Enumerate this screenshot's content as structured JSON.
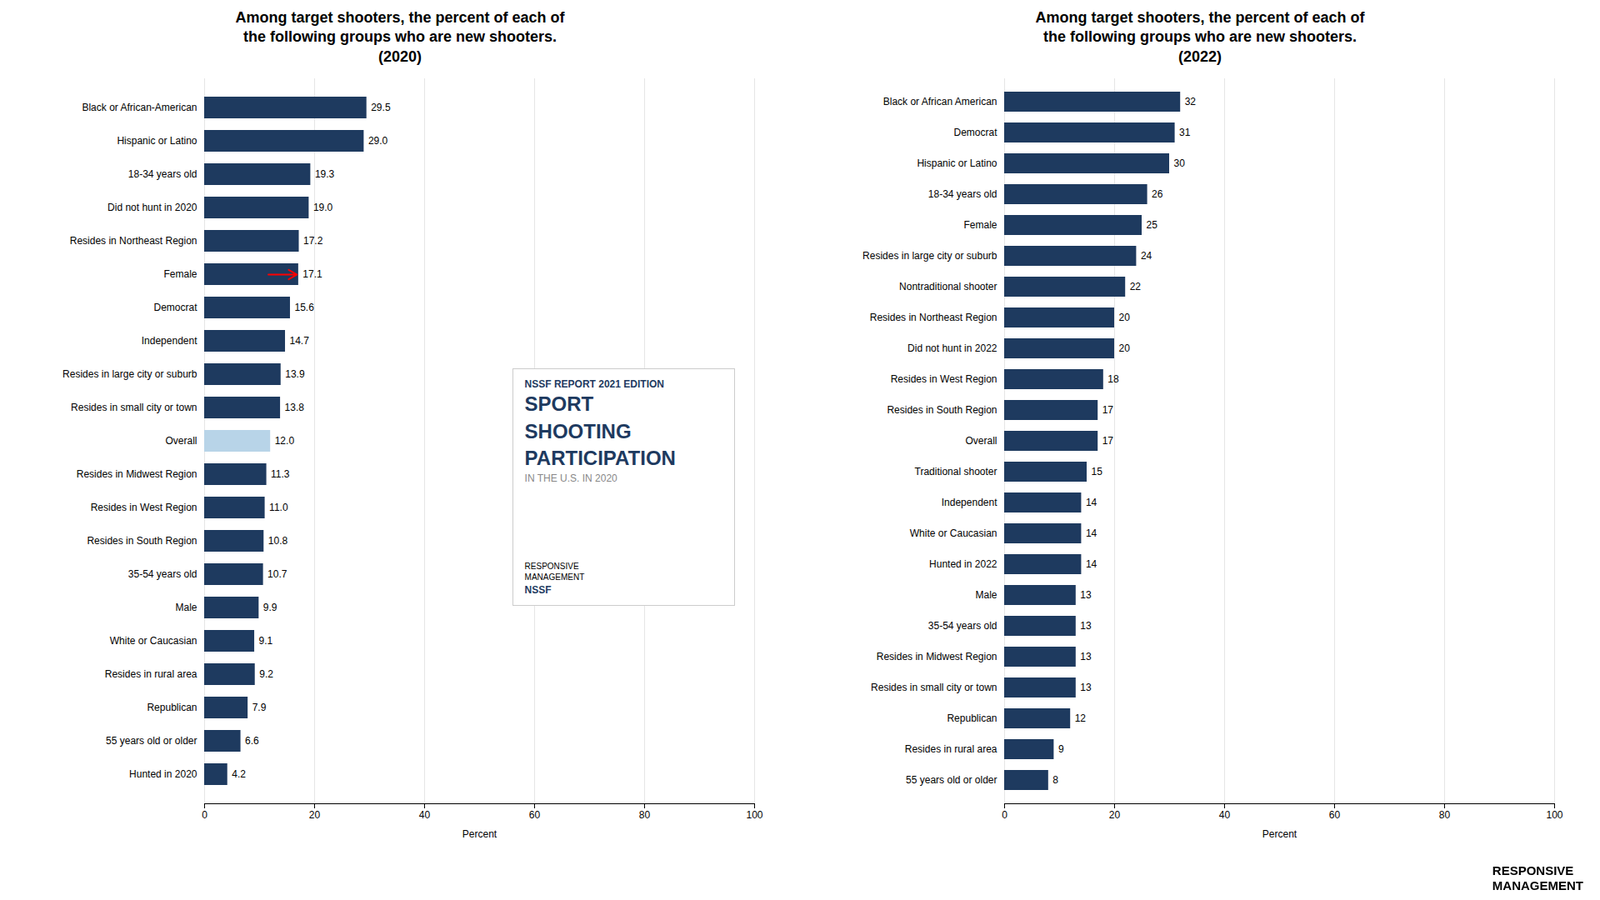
{
  "chart_data": [
    {
      "type": "bar",
      "orientation": "horizontal",
      "title": "Among target shooters, the percent of each of\nthe following groups who are new shooters.\n(2020)",
      "categories": [
        "Black or African-American",
        "Hispanic or Latino",
        "18-34 years old",
        "Did not hunt in 2020",
        "Resides in Northeast Region",
        "Female",
        "Democrat",
        "Independent",
        "Resides in large city or suburb",
        "Resides in small city or town",
        "Overall",
        "Resides in Midwest Region",
        "Resides in West Region",
        "Resides in South Region",
        "35-54 years old",
        "Male",
        "White or Caucasian",
        "Resides in rural area",
        "Republican",
        "55 years old or older",
        "Hunted in 2020"
      ],
      "values": [
        29.5,
        29.0,
        19.3,
        19.0,
        17.2,
        17.1,
        15.6,
        14.7,
        13.9,
        13.8,
        12.0,
        11.3,
        11.0,
        10.8,
        10.7,
        9.9,
        9.1,
        9.2,
        7.9,
        6.6,
        4.2
      ],
      "value_labels": [
        "29.5",
        "29.0",
        "19.3",
        "19.0",
        "17.2",
        "17.1",
        "15.6",
        "14.7",
        "13.9",
        "13.8",
        "12.0",
        "11.3",
        "11.0",
        "10.8",
        "10.7",
        "9.9",
        "9.1",
        "9.2",
        "7.9",
        "6.6",
        "4.2"
      ],
      "colors": [
        "#1e3a5f",
        "#1e3a5f",
        "#1e3a5f",
        "#1e3a5f",
        "#1e3a5f",
        "#1e3a5f",
        "#1e3a5f",
        "#1e3a5f",
        "#1e3a5f",
        "#1e3a5f",
        "#b8d4e8",
        "#1e3a5f",
        "#1e3a5f",
        "#1e3a5f",
        "#1e3a5f",
        "#1e3a5f",
        "#1e3a5f",
        "#1e3a5f",
        "#1e3a5f",
        "#1e3a5f",
        "#1e3a5f"
      ],
      "xlabel": "Percent",
      "xlim": [
        0,
        100
      ],
      "xticks": [
        0,
        20,
        40,
        60,
        80,
        100
      ],
      "grid": true,
      "data_labels": true,
      "annotations": [
        {
          "type": "arrow",
          "category": "Female",
          "color": "red"
        },
        {
          "type": "cover",
          "lines": [
            "NSSF REPORT 2021 EDITION",
            "SPORT",
            "SHOOTING",
            "PARTICIPATION",
            "IN THE U.S. IN 2020",
            "RESPONSIVE",
            "MANAGEMENT",
            "NSSF"
          ]
        }
      ]
    },
    {
      "type": "bar",
      "orientation": "horizontal",
      "title": "Among target shooters, the percent of each of\nthe following groups who are new shooters.\n(2022)",
      "categories": [
        "Black or African American",
        "Democrat",
        "Hispanic or Latino",
        "18-34 years old",
        "Female",
        "Resides in large city or suburb",
        "Nontraditional shooter",
        "Resides in Northeast Region",
        "Did not hunt in 2022",
        "Resides in West Region",
        "Resides in South Region",
        "Overall",
        "Traditional shooter",
        "Independent",
        "White or Caucasian",
        "Hunted in 2022",
        "Male",
        "35-54 years old",
        "Resides in Midwest Region",
        "Resides in small city or town",
        "Republican",
        "Resides in rural area",
        "55 years old or older"
      ],
      "values": [
        32,
        31,
        30,
        26,
        25,
        24,
        22,
        20,
        20,
        18,
        17,
        17,
        15,
        14,
        14,
        14,
        13,
        13,
        13,
        13,
        12,
        9,
        8
      ],
      "color": "#1e3a5f",
      "xlabel": "Percent",
      "xlim": [
        0,
        100
      ],
      "xticks": [
        0,
        20,
        40,
        60,
        80,
        100
      ],
      "grid": true,
      "data_labels": true,
      "annotations": [
        {
          "type": "logo",
          "lines": [
            "RESPONSIVE",
            "MANAGEMENT"
          ]
        }
      ]
    }
  ]
}
